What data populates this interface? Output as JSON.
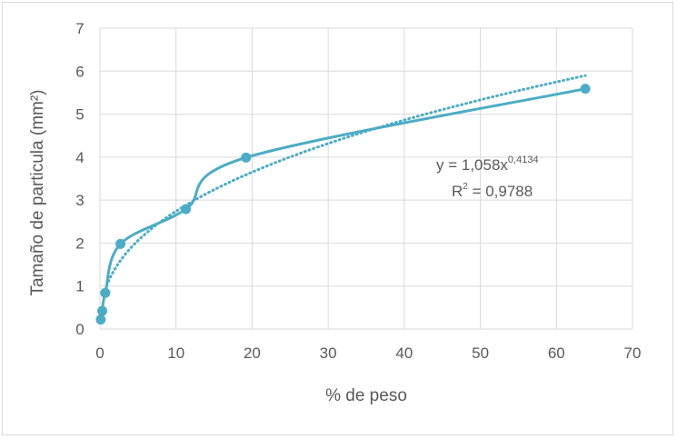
{
  "chart_data": {
    "type": "scatter",
    "title": "",
    "xlabel": "% de peso",
    "ylabel": "Tamaño de particula (mm²)",
    "xlim": [
      0,
      70
    ],
    "ylim": [
      0,
      7
    ],
    "x_ticks": [
      0,
      10,
      20,
      30,
      40,
      50,
      60,
      70
    ],
    "y_ticks": [
      0,
      1,
      2,
      3,
      4,
      5,
      6,
      7
    ],
    "grid": true,
    "legend": "none",
    "series": [
      {
        "style": "smoothed line with markers",
        "color": "#4bacc6",
        "x": [
          0.1,
          0.3,
          0.7,
          2.7,
          11.3,
          19.2,
          63.8
        ],
        "y": [
          0.22,
          0.42,
          0.84,
          1.98,
          2.79,
          3.99,
          5.59
        ]
      }
    ],
    "trendline": {
      "type": "power",
      "style": "dotted",
      "color": "#4bacc6",
      "coefficient": 1.058,
      "exponent": 0.4134,
      "x_range": [
        0.7,
        63.8
      ]
    },
    "annotations": {
      "equation": "y = 1,058x",
      "equation_exponent": "0,4134",
      "r2_prefix": "R",
      "r2_superscript": "2",
      "r2_value": " = 0,9788"
    }
  }
}
